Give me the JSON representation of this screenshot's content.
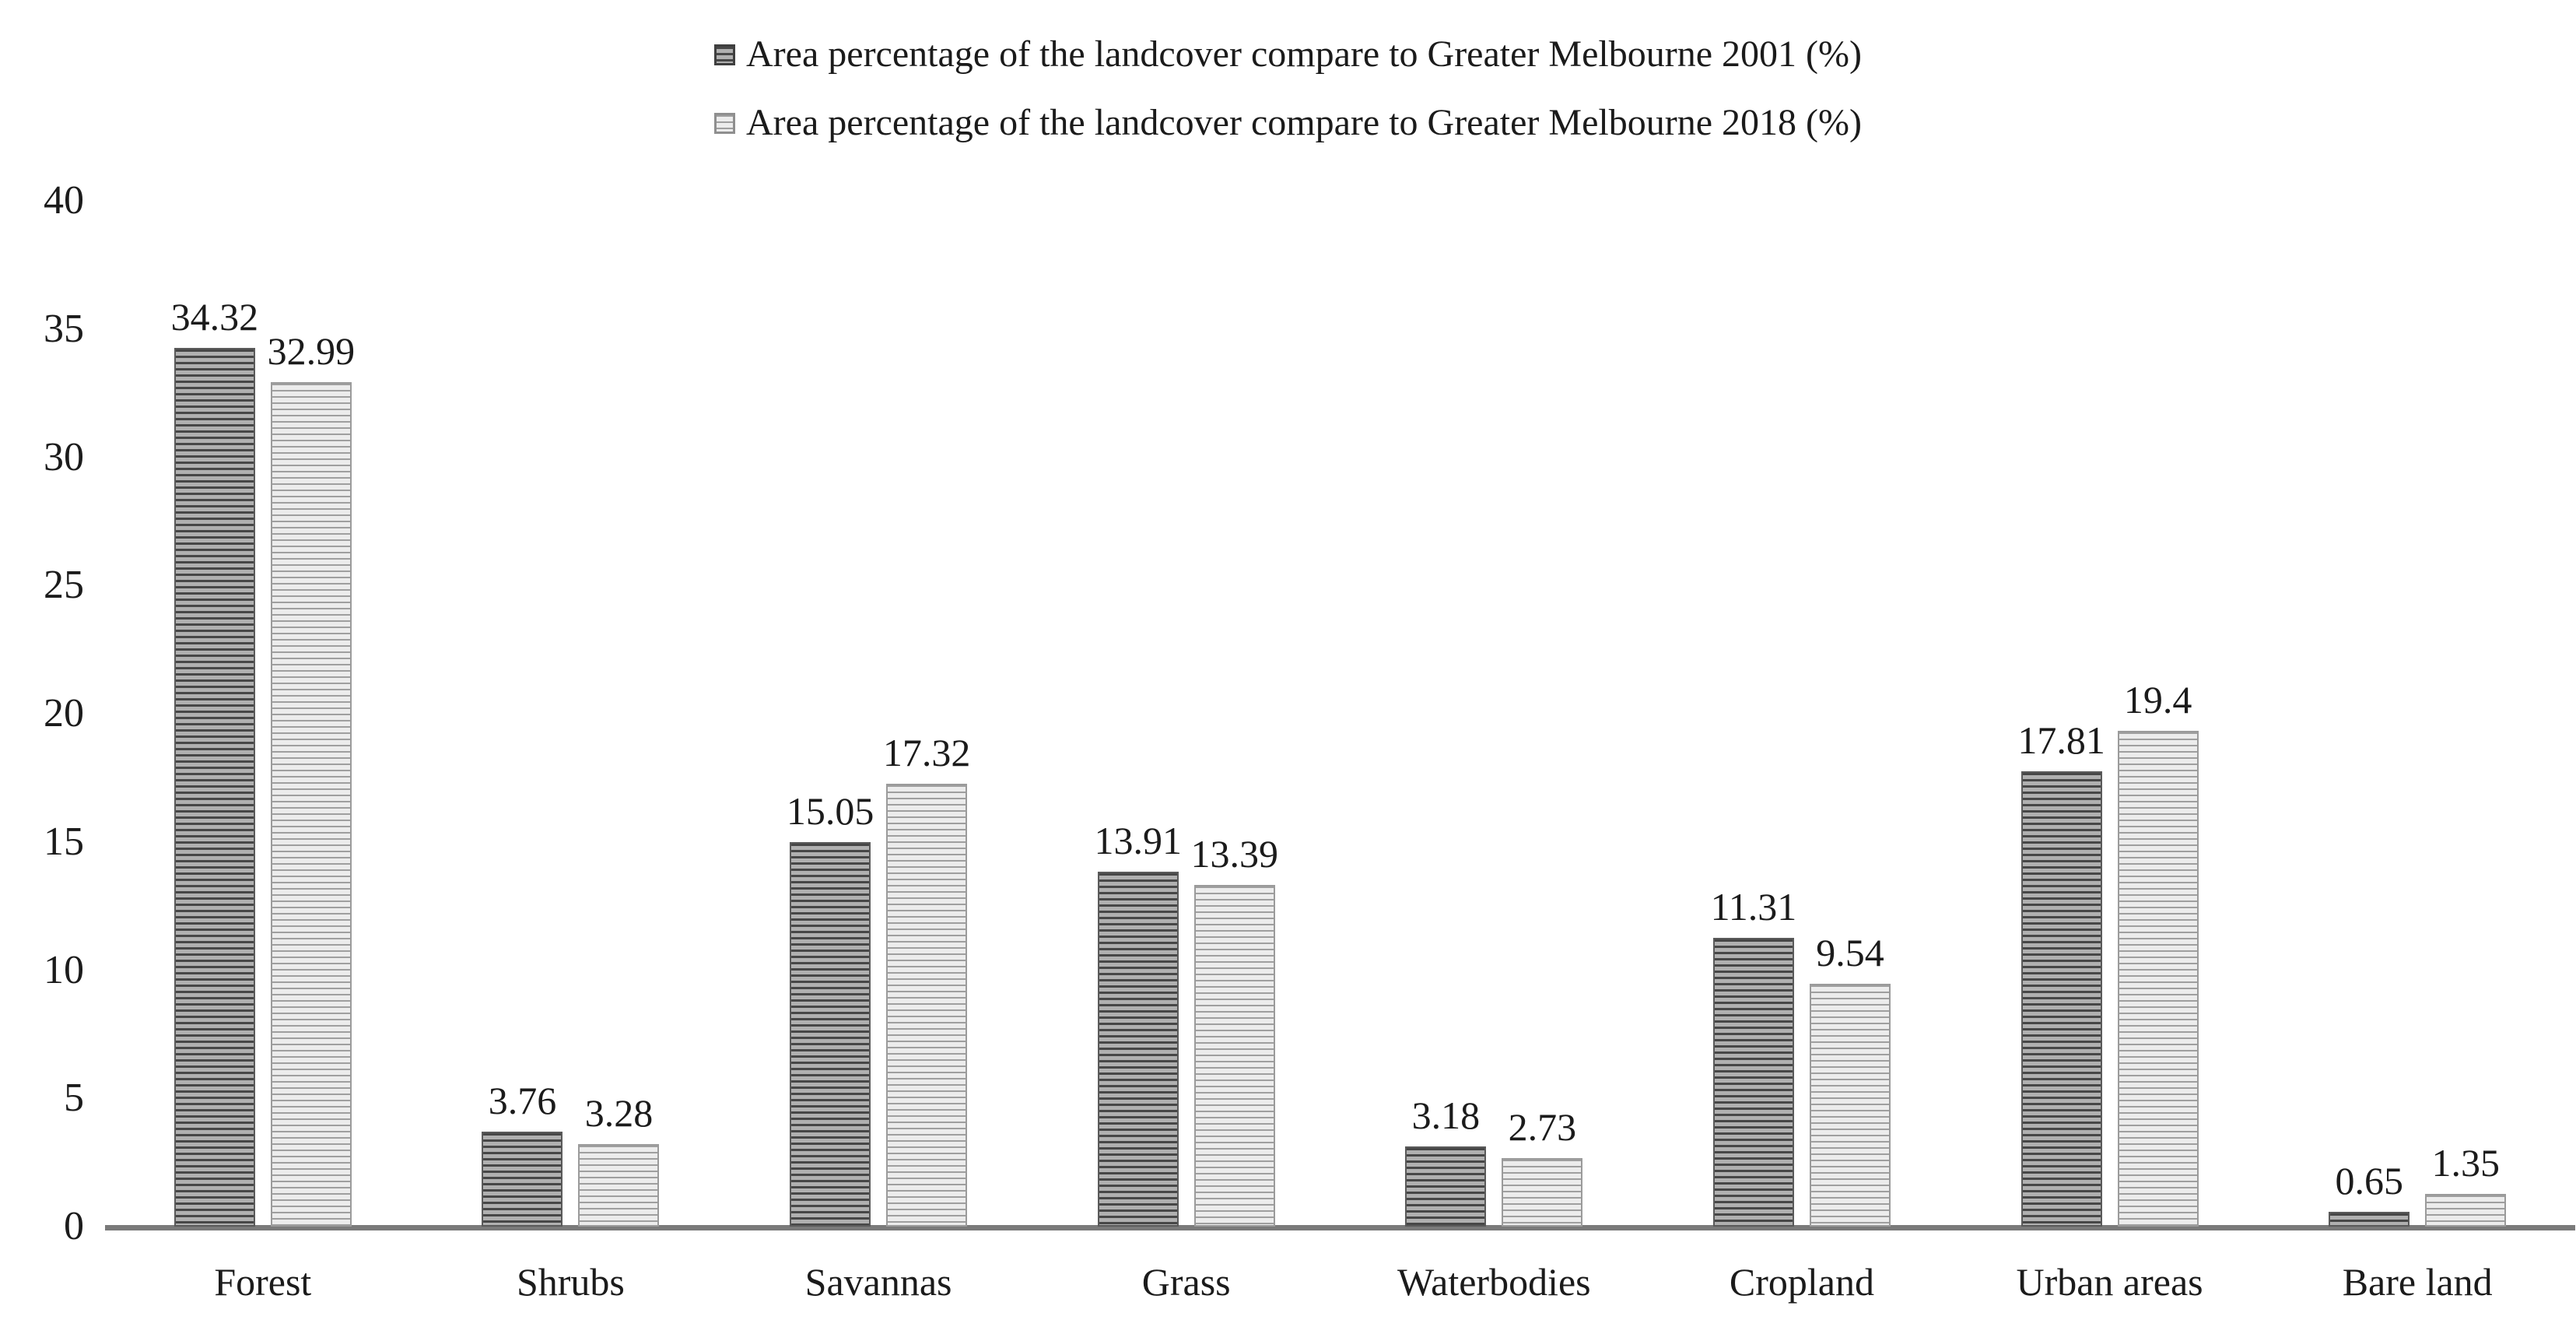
{
  "chart_data": {
    "type": "bar",
    "title": "",
    "xlabel": "",
    "ylabel": "",
    "categories": [
      "Forest",
      "Shrubs",
      "Savannas",
      "Grass",
      "Waterbodies",
      "Cropland",
      "Urban areas",
      "Bare land"
    ],
    "series": [
      {
        "name": "Area percentage of the landcover compare to Greater Melbourne 2001 (%)",
        "values": [
          34.32,
          3.76,
          15.05,
          13.91,
          3.18,
          11.31,
          17.81,
          0.65
        ],
        "labels": [
          "34.32",
          "3.76",
          "15.05",
          "13.91",
          "3.18",
          "11.31",
          "17.81",
          "0.65"
        ],
        "swatch": "dark-hatch"
      },
      {
        "name": "Area percentage of the landcover compare to Greater Melbourne 2018 (%)",
        "values": [
          32.99,
          3.28,
          17.32,
          13.39,
          2.73,
          9.54,
          19.4,
          1.35
        ],
        "labels": [
          "32.99",
          "3.28",
          "17.32",
          "13.39",
          "2.73",
          "9.54",
          "19.4",
          "1.35"
        ],
        "swatch": "light-hatch"
      }
    ],
    "y_axis": {
      "min": 0,
      "max": 40,
      "step": 5,
      "ticks": [
        "0",
        "5",
        "10",
        "15",
        "20",
        "25",
        "30",
        "35",
        "40"
      ]
    },
    "grid": false,
    "legend_position": "top-center",
    "colors": {
      "bar_2001_stripe": "#474747",
      "bar_2001_base": "#b0b0b0",
      "bar_2018_stripe": "#9f9f9f",
      "bar_2018_base": "#ececec",
      "axis_line": "#7a7a7a",
      "text": "#1b1b1b",
      "background": "#ffffff"
    }
  }
}
